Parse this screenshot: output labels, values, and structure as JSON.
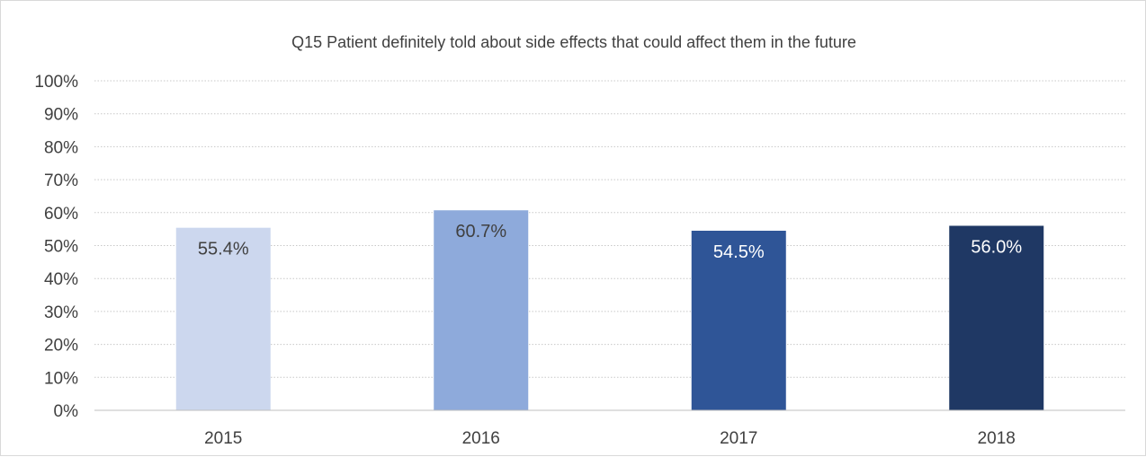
{
  "chart_data": {
    "type": "bar",
    "title": "Q15 Patient definitely told about side effects that could affect them in the future",
    "xlabel": "",
    "ylabel": "",
    "categories": [
      "2015",
      "2016",
      "2017",
      "2018"
    ],
    "values": [
      55.4,
      60.7,
      54.5,
      56.0
    ],
    "data_labels": [
      "55.4%",
      "60.7%",
      "54.5%",
      "56.0%"
    ],
    "bar_colors": [
      "#ccd7ee",
      "#8eaadb",
      "#2f5597",
      "#1f3864"
    ],
    "label_colors": [
      "#404040",
      "#404040",
      "#ffffff",
      "#ffffff"
    ],
    "ylim": [
      0,
      100
    ],
    "yticks": [
      "0%",
      "10%",
      "20%",
      "30%",
      "40%",
      "50%",
      "60%",
      "70%",
      "80%",
      "90%",
      "100%"
    ],
    "grid": true,
    "legend": "none"
  }
}
